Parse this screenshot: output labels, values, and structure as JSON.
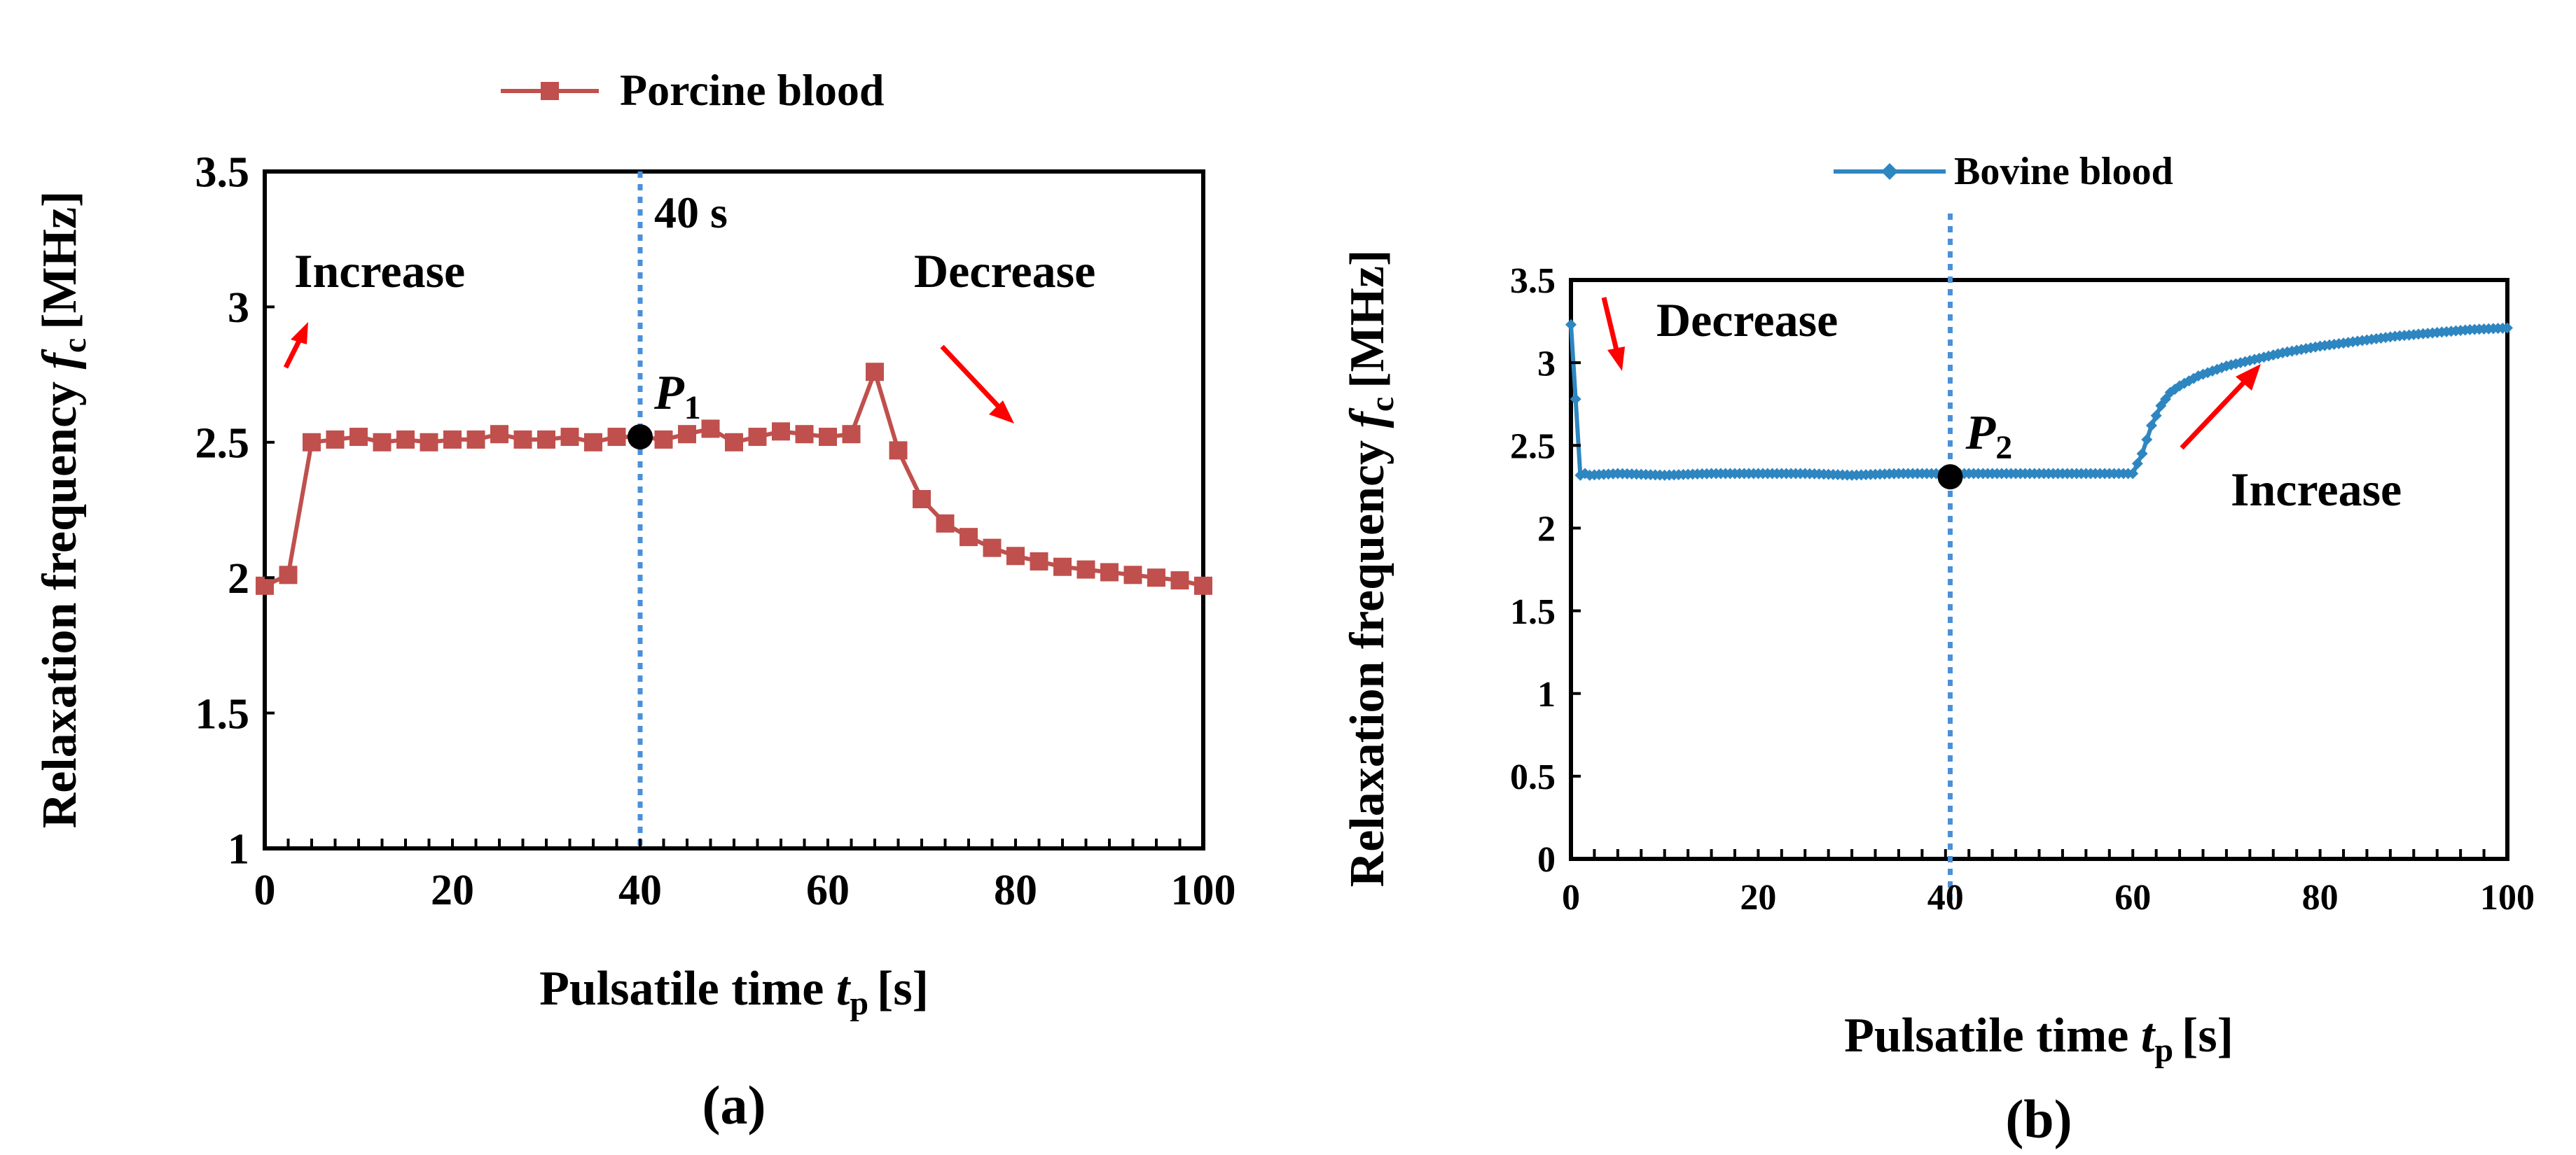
{
  "colors": {
    "porcine": "#c0504d",
    "bovine": "#2e86c1",
    "guide": "#4a90d9",
    "arrow": "#ff0000",
    "marker": "#000000",
    "axis": "#000000"
  },
  "chart_data": [
    {
      "type": "line",
      "panel_label": "(a)",
      "legend": "Porcine blood",
      "ylabel": "Relaxation frequency",
      "ylabel_symbol": "f",
      "ylabel_sub": "c",
      "ylabel_unit": "[MHz]",
      "xlabel": "Pulsatile time",
      "xlabel_symbol": "t",
      "xlabel_sub": "p",
      "xlabel_unit": "[s]",
      "xlim": [
        0,
        100
      ],
      "ylim": [
        1,
        3.5
      ],
      "xticks": [
        "0",
        "20",
        "40",
        "60",
        "80",
        "100"
      ],
      "yticks": [
        "1",
        "1.5",
        "2",
        "2.5",
        "3",
        "3.5"
      ],
      "vline": {
        "x": 40,
        "label": "40 s"
      },
      "point": {
        "name": "P",
        "sub": "1",
        "x": 40,
        "y": 2.52
      },
      "annotations": [
        "Increase",
        "Decrease"
      ],
      "series": [
        {
          "name": "Porcine blood",
          "x": [
            0,
            2.5,
            5,
            7.5,
            10,
            12.5,
            15,
            17.5,
            20,
            22.5,
            25,
            27.5,
            30,
            32.5,
            35,
            37.5,
            40,
            42.5,
            45,
            47.5,
            50,
            52.5,
            55,
            57.5,
            60,
            62.5,
            65,
            67.5,
            70,
            72.5,
            75,
            77.5,
            80,
            82.5,
            85,
            87.5,
            90,
            92.5,
            95,
            97.5,
            100
          ],
          "y": [
            1.97,
            2.01,
            2.5,
            2.51,
            2.52,
            2.5,
            2.51,
            2.5,
            2.51,
            2.51,
            2.53,
            2.51,
            2.51,
            2.52,
            2.5,
            2.52,
            2.52,
            2.51,
            2.53,
            2.55,
            2.5,
            2.52,
            2.54,
            2.53,
            2.52,
            2.53,
            2.76,
            2.47,
            2.29,
            2.2,
            2.15,
            2.11,
            2.08,
            2.06,
            2.04,
            2.03,
            2.02,
            2.01,
            2.0,
            1.99,
            1.97
          ]
        }
      ]
    },
    {
      "type": "line",
      "panel_label": "(b)",
      "legend": "Bovine blood",
      "ylabel": "Relaxation frequency",
      "ylabel_symbol": "f",
      "ylabel_sub": "c",
      "ylabel_unit": "[MHz]",
      "xlabel": "Pulsatile time",
      "xlabel_symbol": "t",
      "xlabel_sub": "p",
      "xlabel_unit": "[s]",
      "xlim": [
        0,
        100
      ],
      "ylim": [
        0,
        3.5
      ],
      "xticks": [
        "0",
        "20",
        "40",
        "60",
        "80",
        "100"
      ],
      "yticks": [
        "0",
        "0.5",
        "1",
        "1.5",
        "2",
        "2.5",
        "3",
        "3.5"
      ],
      "vline": {
        "x": 40.5,
        "label": ""
      },
      "point": {
        "name": "P",
        "sub": "2",
        "x": 40.5,
        "y": 2.31
      },
      "annotations": [
        "Decrease",
        "Increase"
      ],
      "series": [
        {
          "name": "Bovine blood",
          "x": [
            0,
            0.5,
            1,
            1.5,
            2,
            5,
            10,
            15,
            20,
            25,
            30,
            35,
            40,
            45,
            50,
            55,
            58,
            60,
            61,
            62,
            63,
            64,
            65,
            67,
            70,
            73,
            76,
            80,
            84,
            88,
            92,
            96,
            100
          ],
          "y": [
            3.23,
            2.78,
            2.32,
            2.33,
            2.32,
            2.33,
            2.32,
            2.33,
            2.33,
            2.33,
            2.32,
            2.33,
            2.33,
            2.33,
            2.33,
            2.33,
            2.33,
            2.33,
            2.45,
            2.62,
            2.74,
            2.82,
            2.86,
            2.92,
            2.98,
            3.02,
            3.06,
            3.1,
            3.13,
            3.16,
            3.18,
            3.2,
            3.21
          ]
        }
      ]
    }
  ]
}
